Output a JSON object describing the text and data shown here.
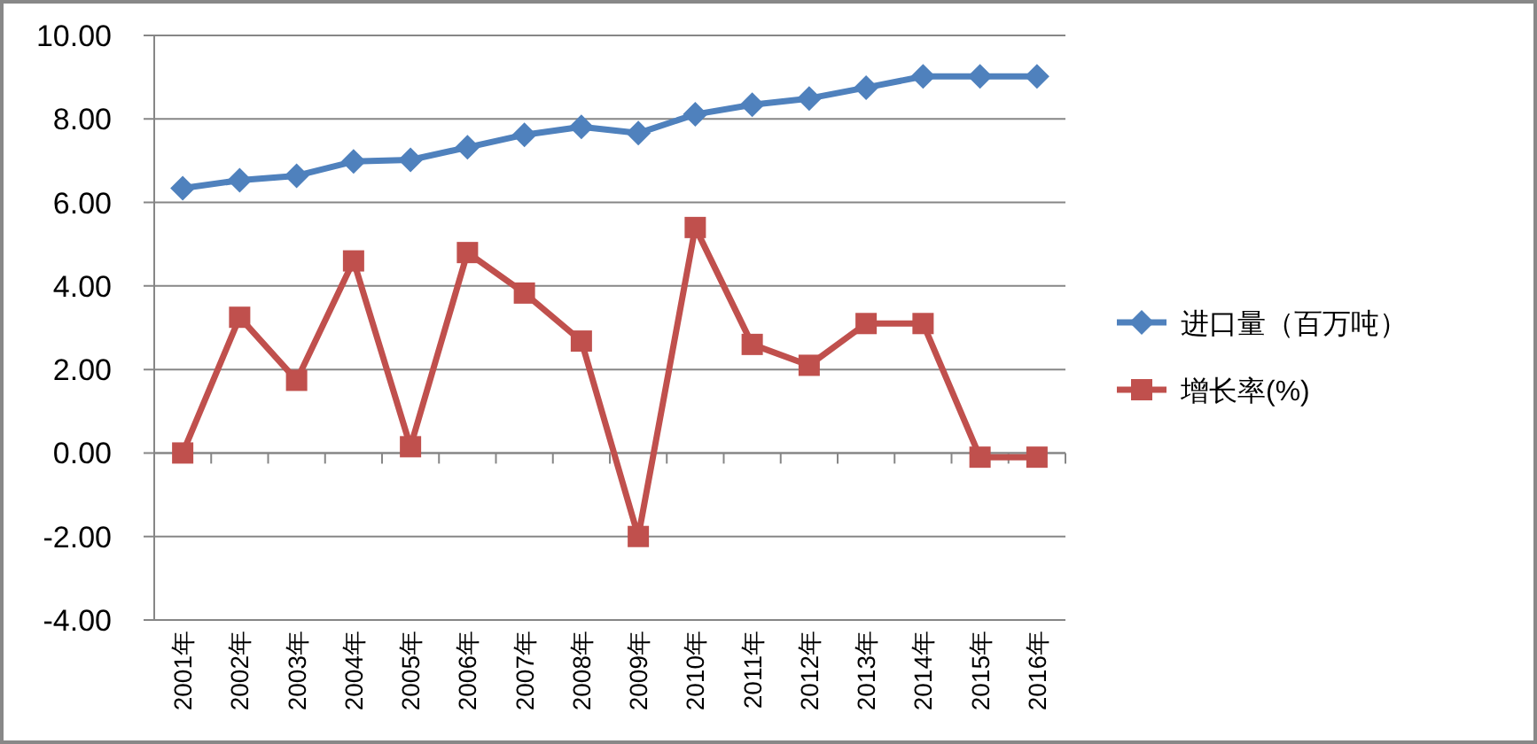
{
  "chart_data": {
    "type": "line",
    "categories": [
      "2001年",
      "2002年",
      "2003年",
      "2004年",
      "2005年",
      "2006年",
      "2007年",
      "2008年",
      "2009年",
      "2010年",
      "2011年",
      "2012年",
      "2013年",
      "2014年",
      "2015年",
      "2016年"
    ],
    "series": [
      {
        "name": "进口量（百万吨）",
        "color": "#4f81bd",
        "marker": "diamond",
        "values": [
          6.34,
          6.53,
          6.64,
          6.98,
          7.02,
          7.32,
          7.62,
          7.81,
          7.66,
          8.11,
          8.34,
          8.49,
          8.75,
          9.02,
          9.02,
          9.02
        ]
      },
      {
        "name": "增长率(%)",
        "color": "#c0504d",
        "marker": "square",
        "values": [
          0,
          3.25,
          1.74,
          4.6,
          0.15,
          4.8,
          3.83,
          2.68,
          -2.0,
          5.4,
          2.6,
          2.1,
          3.1,
          3.1,
          -0.1,
          -0.1
        ]
      }
    ],
    "ylim": [
      -4,
      10
    ],
    "yticks": [
      {
        "value": -4,
        "label": "-4.00"
      },
      {
        "value": -2,
        "label": "-2.00"
      },
      {
        "value": 0,
        "label": "0.00"
      },
      {
        "value": 2,
        "label": "2.00"
      },
      {
        "value": 4,
        "label": "4.00"
      },
      {
        "value": 6,
        "label": "6.00"
      },
      {
        "value": 8,
        "label": "8.00"
      },
      {
        "value": 10,
        "label": "10.00"
      }
    ],
    "grid": "y",
    "legend": "right"
  }
}
